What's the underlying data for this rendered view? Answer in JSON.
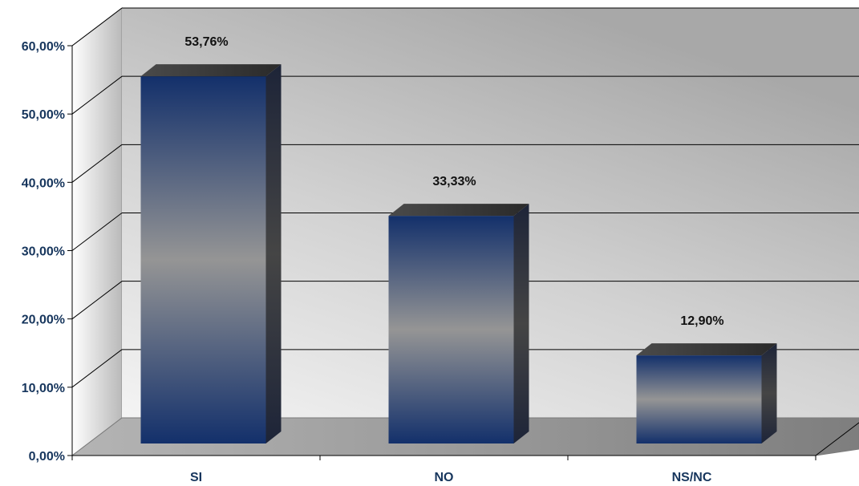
{
  "chart_data": {
    "type": "bar",
    "categories": [
      "SI",
      "NO",
      "NS/NC"
    ],
    "values": [
      53.76,
      33.33,
      12.9
    ],
    "value_labels": [
      "53,76%",
      "33,33%",
      "12,90%"
    ],
    "y_ticks": [
      "0,00%",
      "10,00%",
      "20,00%",
      "30,00%",
      "40,00%",
      "50,00%",
      "60,00%"
    ],
    "ylim": [
      0,
      60
    ],
    "title": "",
    "xlabel": "",
    "ylabel": "",
    "grid": true,
    "legend": "none",
    "style": "3d-column"
  },
  "colors": {
    "bar_dark": "#13306b",
    "bar_mid": "#959595",
    "bar_side": "#2b2b2b",
    "bar_top": "#3b3b3b",
    "wall_light": "#ffffff",
    "wall_dark": "#9a9a9a",
    "floor": "#8a8a8a",
    "tick_text": "#17365d"
  }
}
